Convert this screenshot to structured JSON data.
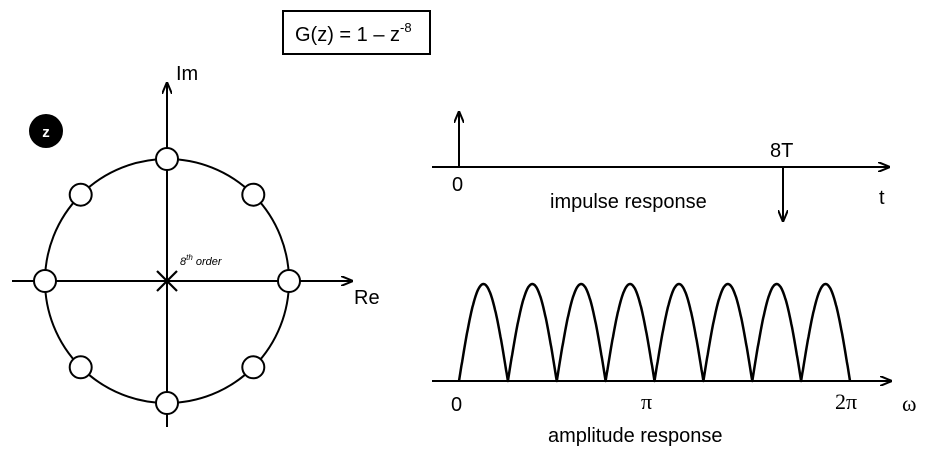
{
  "formula": {
    "prefix": "G(z) = 1 – z",
    "exponent": "-8"
  },
  "z_badge": "z",
  "z_plane": {
    "real_axis_label": "Re",
    "imag_axis_label": "Im",
    "pole_label_superscript": "th",
    "pole_label_base": "8",
    "pole_label_suffix": " order",
    "zero_count": 8,
    "zero_angles_deg": [
      0,
      45,
      90,
      135,
      180,
      225,
      270,
      315
    ],
    "pole_order": 8
  },
  "impulse": {
    "time_label": "t",
    "origin_label": "0",
    "delay_label": "8T",
    "caption": "impulse response",
    "impulses": [
      {
        "time_samples": 0,
        "sign": 1
      },
      {
        "time_samples": 8,
        "sign": -1
      }
    ]
  },
  "amplitude": {
    "freq_label": "ω",
    "tick_labels": [
      "0",
      "π",
      "2π"
    ],
    "caption": "amplitude response",
    "lobe_count": 8
  },
  "colors": {
    "ink": "#000000",
    "background": "#ffffff",
    "badge": "#000000",
    "badge_text": "#ffffff"
  }
}
